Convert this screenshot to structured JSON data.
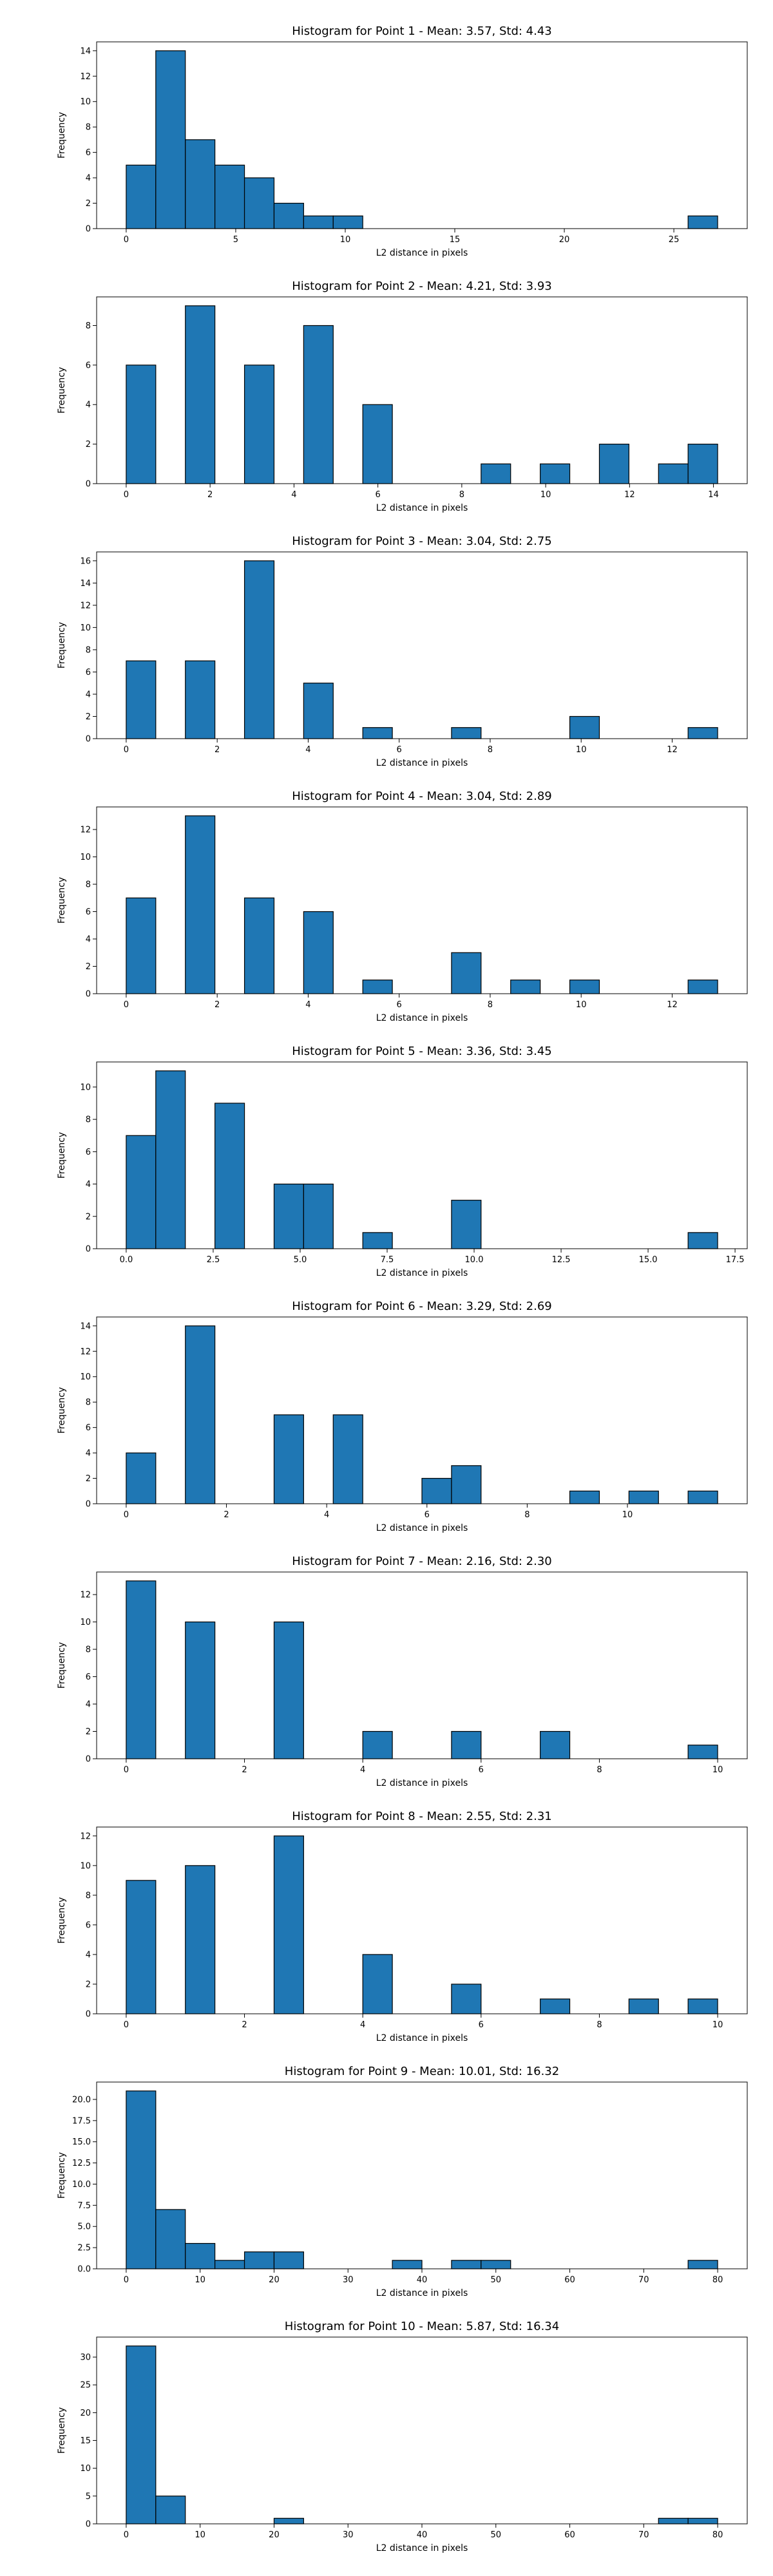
{
  "style": {
    "bar_color": "#1f77b4",
    "edge_color": "#000000",
    "background": "#ffffff"
  },
  "chart_data": [
    {
      "type": "bar",
      "title": "Histogram for Point 1 - Mean: 3.57, Std: 4.43",
      "xlabel": "L2 distance in pixels",
      "ylabel": "Frequency",
      "bin_edges": [
        0.0,
        1.35,
        2.7,
        4.05,
        5.4,
        6.75,
        8.1,
        9.45,
        10.8,
        12.15,
        13.5,
        14.85,
        16.2,
        17.55,
        18.9,
        20.25,
        21.6,
        22.95,
        24.3,
        25.65,
        27.0
      ],
      "values": [
        5,
        14,
        7,
        5,
        4,
        2,
        1,
        1,
        0,
        0,
        0,
        0,
        0,
        0,
        0,
        0,
        0,
        0,
        0,
        1
      ],
      "xlim": [
        -1.35,
        28.35
      ],
      "ylim": [
        0,
        14.7
      ],
      "xticks": [
        0,
        5,
        10,
        15,
        20,
        25
      ],
      "xtick_labels": [
        "0",
        "5",
        "10",
        "15",
        "20",
        "25"
      ],
      "yticks": [
        0,
        2,
        4,
        6,
        8,
        10,
        12,
        14
      ],
      "ytick_labels": [
        "0",
        "2",
        "4",
        "6",
        "8",
        "10",
        "12",
        "14"
      ],
      "grid": false
    },
    {
      "type": "bar",
      "title": "Histogram for Point 2 - Mean: 4.21, Std: 3.93",
      "xlabel": "L2 distance in pixels",
      "ylabel": "Frequency",
      "bin_edges": [
        0.0,
        0.705,
        1.41,
        2.115,
        2.82,
        3.525,
        4.23,
        4.935,
        5.64,
        6.345,
        7.05,
        7.755,
        8.46,
        9.165,
        9.87,
        10.575,
        11.28,
        11.985,
        12.69,
        13.395,
        14.1
      ],
      "values": [
        6,
        0,
        9,
        0,
        6,
        0,
        8,
        0,
        4,
        0,
        0,
        0,
        1,
        0,
        1,
        0,
        2,
        0,
        1,
        2
      ],
      "xlim": [
        -0.705,
        14.805
      ],
      "ylim": [
        0,
        9.45
      ],
      "xticks": [
        0,
        2,
        4,
        6,
        8,
        10,
        12,
        14
      ],
      "xtick_labels": [
        "0",
        "2",
        "4",
        "6",
        "8",
        "10",
        "12",
        "14"
      ],
      "yticks": [
        0,
        2,
        4,
        6,
        8
      ],
      "ytick_labels": [
        "0",
        "2",
        "4",
        "6",
        "8"
      ],
      "grid": false
    },
    {
      "type": "bar",
      "title": "Histogram for Point 3 - Mean: 3.04, Std: 2.75",
      "xlabel": "L2 distance in pixels",
      "ylabel": "Frequency",
      "bin_edges": [
        0.0,
        0.65,
        1.3,
        1.95,
        2.6,
        3.25,
        3.9,
        4.55,
        5.2,
        5.85,
        6.5,
        7.15,
        7.8,
        8.45,
        9.1,
        9.75,
        10.4,
        11.05,
        11.7,
        12.35,
        13.0
      ],
      "values": [
        7,
        0,
        7,
        0,
        16,
        0,
        5,
        0,
        1,
        0,
        0,
        1,
        0,
        0,
        0,
        2,
        0,
        0,
        0,
        1
      ],
      "xlim": [
        -0.65,
        13.65
      ],
      "ylim": [
        0,
        16.8
      ],
      "xticks": [
        0,
        2,
        4,
        6,
        8,
        10,
        12
      ],
      "xtick_labels": [
        "0",
        "2",
        "4",
        "6",
        "8",
        "10",
        "12"
      ],
      "yticks": [
        0,
        2,
        4,
        6,
        8,
        10,
        12,
        14,
        16
      ],
      "ytick_labels": [
        "0",
        "2",
        "4",
        "6",
        "8",
        "10",
        "12",
        "14",
        "16"
      ],
      "grid": false
    },
    {
      "type": "bar",
      "title": "Histogram for Point 4 - Mean: 3.04, Std: 2.89",
      "xlabel": "L2 distance in pixels",
      "ylabel": "Frequency",
      "bin_edges": [
        0.0,
        0.65,
        1.3,
        1.95,
        2.6,
        3.25,
        3.9,
        4.55,
        5.2,
        5.85,
        6.5,
        7.15,
        7.8,
        8.45,
        9.1,
        9.75,
        10.4,
        11.05,
        11.7,
        12.35,
        13.0
      ],
      "values": [
        7,
        0,
        13,
        0,
        7,
        0,
        6,
        0,
        1,
        0,
        0,
        3,
        0,
        1,
        0,
        1,
        0,
        0,
        0,
        1
      ],
      "xlim": [
        -0.65,
        13.65
      ],
      "ylim": [
        0,
        13.65
      ],
      "xticks": [
        0,
        2,
        4,
        6,
        8,
        10,
        12
      ],
      "xtick_labels": [
        "0",
        "2",
        "4",
        "6",
        "8",
        "10",
        "12"
      ],
      "yticks": [
        0,
        2,
        4,
        6,
        8,
        10,
        12
      ],
      "ytick_labels": [
        "0",
        "2",
        "4",
        "6",
        "8",
        "10",
        "12"
      ],
      "grid": false
    },
    {
      "type": "bar",
      "title": "Histogram for Point 5 - Mean: 3.36, Std: 3.45",
      "xlabel": "L2 distance in pixels",
      "ylabel": "Frequency",
      "bin_edges": [
        0.0,
        0.85,
        1.7,
        2.55,
        3.4,
        4.25,
        5.1,
        5.95,
        6.8,
        7.65,
        8.5,
        9.35,
        10.2,
        11.05,
        11.9,
        12.75,
        13.6,
        14.45,
        15.3,
        16.15,
        17.0
      ],
      "values": [
        7,
        11,
        0,
        9,
        0,
        4,
        4,
        0,
        1,
        0,
        0,
        3,
        0,
        0,
        0,
        0,
        0,
        0,
        0,
        1
      ],
      "xlim": [
        -0.85,
        17.85
      ],
      "ylim": [
        0,
        11.55
      ],
      "xticks": [
        0,
        2.5,
        5,
        7.5,
        10,
        12.5,
        15,
        17.5
      ],
      "xtick_labels": [
        "0.0",
        "2.5",
        "5.0",
        "7.5",
        "10.0",
        "12.5",
        "15.0",
        "17.5"
      ],
      "yticks": [
        0,
        2,
        4,
        6,
        8,
        10
      ],
      "ytick_labels": [
        "0",
        "2",
        "4",
        "6",
        "8",
        "10"
      ],
      "grid": false
    },
    {
      "type": "bar",
      "title": "Histogram for Point 6 - Mean: 3.29, Std: 2.69",
      "xlabel": "L2 distance in pixels",
      "ylabel": "Frequency",
      "bin_edges": [
        0.0,
        0.59,
        1.18,
        1.77,
        2.36,
        2.95,
        3.54,
        4.13,
        4.72,
        5.31,
        5.9,
        6.49,
        7.08,
        7.67,
        8.26,
        8.85,
        9.44,
        10.03,
        10.62,
        11.21,
        11.8
      ],
      "values": [
        4,
        0,
        14,
        0,
        0,
        7,
        0,
        7,
        0,
        0,
        2,
        3,
        0,
        0,
        0,
        1,
        0,
        1,
        0,
        1
      ],
      "xlim": [
        -0.59,
        12.39
      ],
      "ylim": [
        0,
        14.7
      ],
      "xticks": [
        0,
        2,
        4,
        6,
        8,
        10
      ],
      "xtick_labels": [
        "0",
        "2",
        "4",
        "6",
        "8",
        "10"
      ],
      "yticks": [
        0,
        2,
        4,
        6,
        8,
        10,
        12,
        14
      ],
      "ytick_labels": [
        "0",
        "2",
        "4",
        "6",
        "8",
        "10",
        "12",
        "14"
      ],
      "grid": false
    },
    {
      "type": "bar",
      "title": "Histogram for Point 7 - Mean: 2.16, Std: 2.30",
      "xlabel": "L2 distance in pixels",
      "ylabel": "Frequency",
      "bin_edges": [
        0.0,
        0.5,
        1.0,
        1.5,
        2.0,
        2.5,
        3.0,
        3.5,
        4.0,
        4.5,
        5.0,
        5.5,
        6.0,
        6.5,
        7.0,
        7.5,
        8.0,
        8.5,
        9.0,
        9.5,
        10.0
      ],
      "values": [
        13,
        0,
        10,
        0,
        0,
        10,
        0,
        0,
        2,
        0,
        0,
        2,
        0,
        0,
        2,
        0,
        0,
        0,
        0,
        1
      ],
      "xlim": [
        -0.5,
        10.5
      ],
      "ylim": [
        0,
        13.65
      ],
      "xticks": [
        0,
        2,
        4,
        6,
        8,
        10
      ],
      "xtick_labels": [
        "0",
        "2",
        "4",
        "6",
        "8",
        "10"
      ],
      "yticks": [
        0,
        2,
        4,
        6,
        8,
        10,
        12
      ],
      "ytick_labels": [
        "0",
        "2",
        "4",
        "6",
        "8",
        "10",
        "12"
      ],
      "grid": false
    },
    {
      "type": "bar",
      "title": "Histogram for Point 8 - Mean: 2.55, Std: 2.31",
      "xlabel": "L2 distance in pixels",
      "ylabel": "Frequency",
      "bin_edges": [
        0.0,
        0.5,
        1.0,
        1.5,
        2.0,
        2.5,
        3.0,
        3.5,
        4.0,
        4.5,
        5.0,
        5.5,
        6.0,
        6.5,
        7.0,
        7.5,
        8.0,
        8.5,
        9.0,
        9.5,
        10.0
      ],
      "values": [
        9,
        0,
        10,
        0,
        0,
        12,
        0,
        0,
        4,
        0,
        0,
        2,
        0,
        0,
        1,
        0,
        0,
        1,
        0,
        1
      ],
      "xlim": [
        -0.5,
        10.5
      ],
      "ylim": [
        0,
        12.6
      ],
      "xticks": [
        0,
        2,
        4,
        6,
        8,
        10
      ],
      "xtick_labels": [
        "0",
        "2",
        "4",
        "6",
        "8",
        "10"
      ],
      "yticks": [
        0,
        2,
        4,
        6,
        8,
        10,
        12
      ],
      "ytick_labels": [
        "0",
        "2",
        "4",
        "6",
        "8",
        "10",
        "12"
      ],
      "grid": false
    },
    {
      "type": "bar",
      "title": "Histogram for Point 9 - Mean: 10.01, Std: 16.32",
      "xlabel": "L2 distance in pixels",
      "ylabel": "Frequency",
      "bin_edges": [
        0.0,
        4.0,
        8.0,
        12.0,
        16.0,
        20.0,
        24.0,
        28.0,
        32.0,
        36.0,
        40.0,
        44.0,
        48.0,
        52.0,
        56.0,
        60.0,
        64.0,
        68.0,
        72.0,
        76.0,
        80.0
      ],
      "values": [
        21,
        7,
        3,
        1,
        2,
        2,
        0,
        0,
        0,
        1,
        0,
        1,
        1,
        0,
        0,
        0,
        0,
        0,
        0,
        1
      ],
      "xlim": [
        -4,
        84
      ],
      "ylim": [
        0,
        22.05
      ],
      "xticks": [
        0,
        10,
        20,
        30,
        40,
        50,
        60,
        70,
        80
      ],
      "xtick_labels": [
        "0",
        "10",
        "20",
        "30",
        "40",
        "50",
        "60",
        "70",
        "80"
      ],
      "yticks": [
        0,
        2.5,
        5,
        7.5,
        10,
        12.5,
        15,
        17.5,
        20
      ],
      "ytick_labels": [
        "0.0",
        "2.5",
        "5.0",
        "7.5",
        "10.0",
        "12.5",
        "15.0",
        "17.5",
        "20.0"
      ],
      "grid": false
    },
    {
      "type": "bar",
      "title": "Histogram for Point 10 - Mean: 5.87, Std: 16.34",
      "xlabel": "L2 distance in pixels",
      "ylabel": "Frequency",
      "bin_edges": [
        0.0,
        4.0,
        8.0,
        12.0,
        16.0,
        20.0,
        24.0,
        28.0,
        32.0,
        36.0,
        40.0,
        44.0,
        48.0,
        52.0,
        56.0,
        60.0,
        64.0,
        68.0,
        72.0,
        76.0,
        80.0
      ],
      "values": [
        32,
        5,
        0,
        0,
        0,
        1,
        0,
        0,
        0,
        0,
        0,
        0,
        0,
        0,
        0,
        0,
        0,
        0,
        1,
        1
      ],
      "xlim": [
        -4,
        84
      ],
      "ylim": [
        0,
        33.6
      ],
      "xticks": [
        0,
        10,
        20,
        30,
        40,
        50,
        60,
        70,
        80
      ],
      "xtick_labels": [
        "0",
        "10",
        "20",
        "30",
        "40",
        "50",
        "60",
        "70",
        "80"
      ],
      "yticks": [
        0,
        5,
        10,
        15,
        20,
        25,
        30
      ],
      "ytick_labels": [
        "0",
        "5",
        "10",
        "15",
        "20",
        "25",
        "30"
      ],
      "grid": false
    }
  ]
}
